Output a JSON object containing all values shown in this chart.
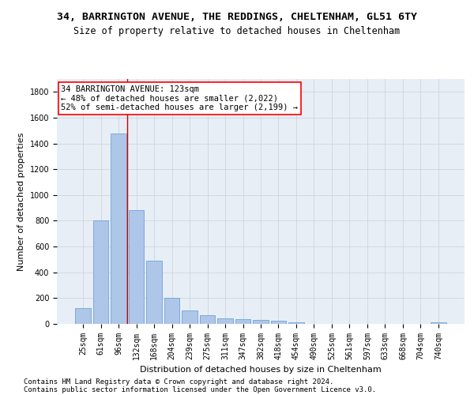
{
  "title1": "34, BARRINGTON AVENUE, THE REDDINGS, CHELTENHAM, GL51 6TY",
  "title2": "Size of property relative to detached houses in Cheltenham",
  "xlabel": "Distribution of detached houses by size in Cheltenham",
  "ylabel": "Number of detached properties",
  "categories": [
    "25sqm",
    "61sqm",
    "96sqm",
    "132sqm",
    "168sqm",
    "204sqm",
    "239sqm",
    "275sqm",
    "311sqm",
    "347sqm",
    "382sqm",
    "418sqm",
    "454sqm",
    "490sqm",
    "525sqm",
    "561sqm",
    "597sqm",
    "633sqm",
    "668sqm",
    "704sqm",
    "740sqm"
  ],
  "values": [
    125,
    800,
    1480,
    880,
    490,
    205,
    105,
    65,
    40,
    35,
    30,
    25,
    15,
    0,
    0,
    0,
    0,
    0,
    0,
    0,
    15
  ],
  "bar_color": "#aec6e8",
  "bar_edge_color": "#5b9bd5",
  "background_color": "#ffffff",
  "axes_bg_color": "#e8eef5",
  "grid_color": "#c8d0dc",
  "annotation_text_line1": "34 BARRINGTON AVENUE: 123sqm",
  "annotation_text_line2": "← 48% of detached houses are smaller (2,022)",
  "annotation_text_line3": "52% of semi-detached houses are larger (2,199) →",
  "vline_x": 2.5,
  "vline_color": "#cc0000",
  "ylim": [
    0,
    1900
  ],
  "yticks": [
    0,
    200,
    400,
    600,
    800,
    1000,
    1200,
    1400,
    1600,
    1800
  ],
  "footer1": "Contains HM Land Registry data © Crown copyright and database right 2024.",
  "footer2": "Contains public sector information licensed under the Open Government Licence v3.0.",
  "title1_fontsize": 9.5,
  "title2_fontsize": 8.5,
  "xlabel_fontsize": 8,
  "ylabel_fontsize": 8,
  "tick_fontsize": 7,
  "annotation_fontsize": 7.5,
  "footer_fontsize": 6.5
}
